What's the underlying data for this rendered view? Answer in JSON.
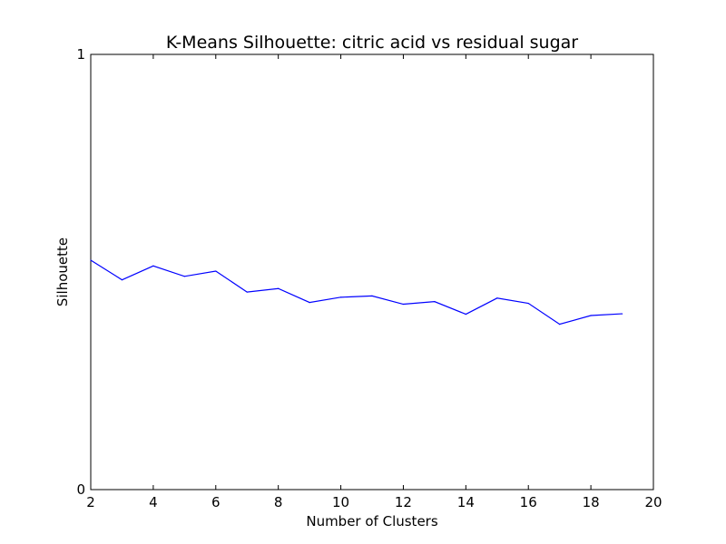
{
  "chart_data": {
    "type": "line",
    "title": "K-Means Silhouette: citric acid vs residual sugar",
    "xlabel": "Number of Clusters",
    "ylabel": "Silhouette",
    "xlim": [
      2,
      20
    ],
    "ylim": [
      0,
      1
    ],
    "xticks": [
      "2",
      "4",
      "6",
      "8",
      "10",
      "12",
      "14",
      "16",
      "18",
      "20"
    ],
    "yticks": [
      "0",
      "1"
    ],
    "grid": false,
    "series": [
      {
        "color": "#0000ff",
        "x": [
          2,
          3,
          4,
          5,
          6,
          7,
          8,
          9,
          10,
          11,
          12,
          13,
          14,
          15,
          16,
          17,
          18,
          19
        ],
        "y": [
          0.527,
          0.482,
          0.514,
          0.49,
          0.502,
          0.454,
          0.462,
          0.43,
          0.442,
          0.445,
          0.426,
          0.432,
          0.403,
          0.44,
          0.428,
          0.38,
          0.4,
          0.404
        ]
      }
    ]
  }
}
